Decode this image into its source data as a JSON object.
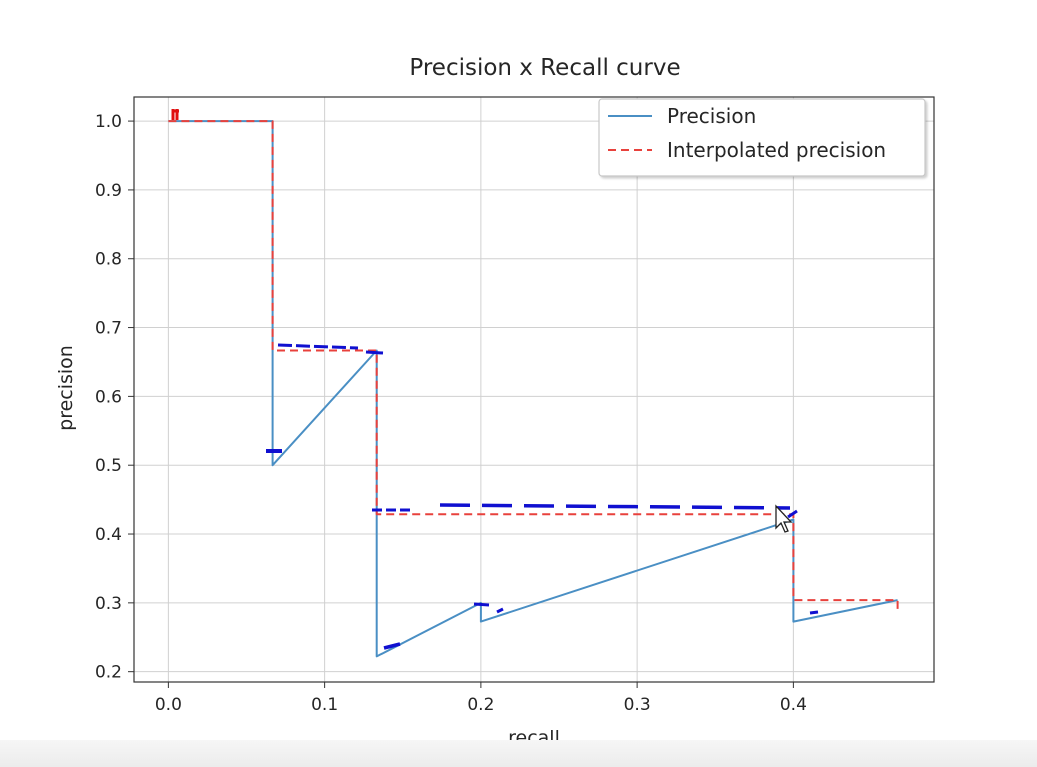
{
  "chart_data": {
    "type": "line",
    "title": "Precision x Recall curve",
    "xlabel": "recall",
    "ylabel": "precision",
    "xlim": [
      -0.022,
      0.49
    ],
    "ylim": [
      0.185,
      1.035
    ],
    "xticks": [
      "0.0",
      "0.1",
      "0.2",
      "0.3",
      "0.4"
    ],
    "yticks": [
      "0.2",
      "0.3",
      "0.4",
      "0.5",
      "0.6",
      "0.7",
      "0.8",
      "0.9",
      "1.0"
    ],
    "grid": true,
    "legend_position": "top-right",
    "series": [
      {
        "name": "Precision",
        "color": "#4a8fc4",
        "style": "solid",
        "x": [
          0.0,
          0.0667,
          0.0667,
          0.1333,
          0.1333,
          0.2,
          0.2,
          0.4,
          0.4,
          0.4667
        ],
        "y": [
          1.0,
          1.0,
          0.5,
          0.6667,
          0.2222,
          0.3,
          0.2727,
          0.4211,
          0.2727,
          0.304
        ]
      },
      {
        "name": "Interpolated precision",
        "color": "#e8413c",
        "style": "dashed",
        "x": [
          0.0,
          0.0667,
          0.0667,
          0.1333,
          0.1333,
          0.4,
          0.4,
          0.4667,
          0.4667
        ],
        "y": [
          1.0,
          1.0,
          0.6667,
          0.6667,
          0.4286,
          0.4286,
          0.304,
          0.304,
          0.29
        ]
      }
    ]
  }
}
